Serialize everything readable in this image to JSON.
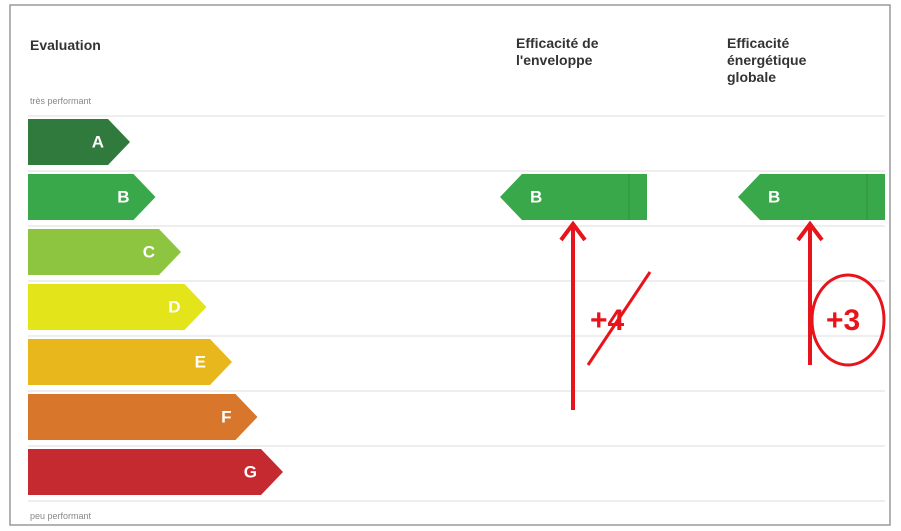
{
  "header": {
    "evaluation": "Evaluation",
    "envelope": [
      "Efficacité de",
      "l'enveloppe"
    ],
    "global": [
      "Efficacité",
      "énergétique",
      "globale"
    ]
  },
  "top_note": "très performant",
  "bottom_note": "peu performant",
  "grades": [
    {
      "label": "A",
      "color": "#2f7a3c"
    },
    {
      "label": "B",
      "color": "#39a84a"
    },
    {
      "label": "C",
      "color": "#8dc540"
    },
    {
      "label": "D",
      "color": "#e4e41b"
    },
    {
      "label": "E",
      "color": "#e7b71c"
    },
    {
      "label": "F",
      "color": "#d8772b"
    },
    {
      "label": "G",
      "color": "#c62a31"
    }
  ],
  "ratings": {
    "envelope": "B",
    "global": "B"
  },
  "annotations": {
    "envelope": "+4",
    "global": "+3"
  }
}
